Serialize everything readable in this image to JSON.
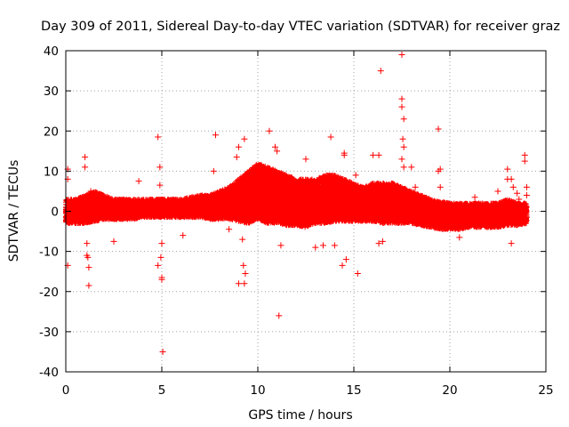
{
  "chart_data": {
    "type": "scatter",
    "title": "Day 309 of 2011, Sidereal Day-to-day VTEC variation (SDTVAR) for receiver graz",
    "xlabel": "GPS time / hours",
    "ylabel": "SDTVAR / TECUs",
    "xlim": [
      0,
      25
    ],
    "ylim": [
      -40,
      40
    ],
    "xticks": [
      0,
      5,
      10,
      15,
      20,
      25
    ],
    "yticks": [
      -40,
      -30,
      -20,
      -10,
      0,
      10,
      20,
      30,
      40
    ],
    "grid": true,
    "marker": "+",
    "color": "#ff0000",
    "band": {
      "description": "dense continuous data band approx. lower/upper envelope (TECU) vs GPS time (hours)",
      "x": [
        0.0,
        0.5,
        1.0,
        1.5,
        2.0,
        2.5,
        3.0,
        3.5,
        4.0,
        4.5,
        5.0,
        5.5,
        6.0,
        6.5,
        7.0,
        7.5,
        8.0,
        8.5,
        9.0,
        9.5,
        10.0,
        10.5,
        11.0,
        11.5,
        12.0,
        12.5,
        13.0,
        13.5,
        14.0,
        14.5,
        15.0,
        15.5,
        16.0,
        16.5,
        17.0,
        17.5,
        18.0,
        18.5,
        19.0,
        19.5,
        20.0,
        20.5,
        21.0,
        21.5,
        22.0,
        22.5,
        23.0,
        23.5,
        24.0
      ],
      "lower": [
        -3,
        -3,
        -3,
        -2.5,
        -2,
        -2,
        -2,
        -2,
        -1.5,
        -1.5,
        -1.5,
        -1.5,
        -1.5,
        -1.5,
        -1.5,
        -2,
        -2,
        -2,
        -2.5,
        -3,
        -2,
        -3,
        -3,
        -3.5,
        -3.5,
        -4,
        -3,
        -3,
        -2.5,
        -2.5,
        -2.5,
        -2.5,
        -2.5,
        -3,
        -3,
        -3,
        -3,
        -3.5,
        -4,
        -4.5,
        -4.5,
        -4.5,
        -4,
        -4,
        -4,
        -4,
        -3.5,
        -3.5,
        -3
      ],
      "upper": [
        3,
        3,
        4,
        5,
        4,
        3,
        3,
        3,
        3,
        3,
        3,
        3,
        3,
        3.5,
        4,
        4,
        5,
        6,
        8,
        10,
        12,
        11,
        10,
        9,
        8,
        8,
        8,
        9,
        9,
        8,
        7,
        6,
        7,
        7,
        7,
        6,
        5,
        4,
        3,
        2.5,
        2,
        2,
        2,
        2,
        2,
        2,
        3,
        2,
        2
      ]
    },
    "outliers": [
      {
        "x": 0.1,
        "y": 10.5
      },
      {
        "x": 0.1,
        "y": 8
      },
      {
        "x": 0.1,
        "y": -13.5
      },
      {
        "x": 1.0,
        "y": 13.5
      },
      {
        "x": 1.0,
        "y": 11
      },
      {
        "x": 1.1,
        "y": -8
      },
      {
        "x": 1.1,
        "y": -11
      },
      {
        "x": 1.2,
        "y": -14
      },
      {
        "x": 1.2,
        "y": -18.5
      },
      {
        "x": 1.15,
        "y": -11.5
      },
      {
        "x": 1.3,
        "y": 5
      },
      {
        "x": 2.5,
        "y": -7.5
      },
      {
        "x": 3.8,
        "y": 7.5
      },
      {
        "x": 4.8,
        "y": 18.5
      },
      {
        "x": 4.9,
        "y": 11
      },
      {
        "x": 4.9,
        "y": 6.5
      },
      {
        "x": 5.0,
        "y": -8
      },
      {
        "x": 4.95,
        "y": -11.5
      },
      {
        "x": 4.8,
        "y": -13.5
      },
      {
        "x": 5.0,
        "y": -16.5
      },
      {
        "x": 5.0,
        "y": -17
      },
      {
        "x": 5.05,
        "y": -35
      },
      {
        "x": 6.1,
        "y": -6
      },
      {
        "x": 7.8,
        "y": 19
      },
      {
        "x": 7.7,
        "y": 10
      },
      {
        "x": 8.5,
        "y": -4.5
      },
      {
        "x": 8.9,
        "y": 13.5
      },
      {
        "x": 9.0,
        "y": 16
      },
      {
        "x": 9.3,
        "y": 18
      },
      {
        "x": 9.0,
        "y": -18
      },
      {
        "x": 9.25,
        "y": -13.5
      },
      {
        "x": 9.35,
        "y": -15.5
      },
      {
        "x": 9.3,
        "y": -18
      },
      {
        "x": 9.2,
        "y": -7
      },
      {
        "x": 10.6,
        "y": 20
      },
      {
        "x": 10.9,
        "y": 16
      },
      {
        "x": 11.0,
        "y": 15
      },
      {
        "x": 11.2,
        "y": -8.5
      },
      {
        "x": 11.1,
        "y": -26
      },
      {
        "x": 12.5,
        "y": 13
      },
      {
        "x": 13.0,
        "y": -9
      },
      {
        "x": 13.4,
        "y": -8.5
      },
      {
        "x": 13.8,
        "y": 18.5
      },
      {
        "x": 14.0,
        "y": -8.5
      },
      {
        "x": 14.5,
        "y": 14.5
      },
      {
        "x": 14.4,
        "y": -13.5
      },
      {
        "x": 14.6,
        "y": -12
      },
      {
        "x": 14.5,
        "y": 14
      },
      {
        "x": 15.2,
        "y": -15.5
      },
      {
        "x": 15.1,
        "y": 9
      },
      {
        "x": 16.0,
        "y": 14
      },
      {
        "x": 16.3,
        "y": 14
      },
      {
        "x": 16.4,
        "y": 35
      },
      {
        "x": 16.5,
        "y": -7.5
      },
      {
        "x": 16.3,
        "y": -8
      },
      {
        "x": 17.5,
        "y": 39
      },
      {
        "x": 17.5,
        "y": 28
      },
      {
        "x": 17.5,
        "y": 26
      },
      {
        "x": 17.6,
        "y": 23
      },
      {
        "x": 17.55,
        "y": 18
      },
      {
        "x": 17.6,
        "y": 16
      },
      {
        "x": 17.5,
        "y": 13
      },
      {
        "x": 17.6,
        "y": 11
      },
      {
        "x": 18.0,
        "y": 11
      },
      {
        "x": 18.2,
        "y": 6
      },
      {
        "x": 19.4,
        "y": 20.5
      },
      {
        "x": 19.5,
        "y": 10.5
      },
      {
        "x": 19.4,
        "y": 10
      },
      {
        "x": 19.5,
        "y": 6
      },
      {
        "x": 20.5,
        "y": -6.5
      },
      {
        "x": 21.3,
        "y": 3.5
      },
      {
        "x": 22.5,
        "y": 5
      },
      {
        "x": 23.0,
        "y": 10.5
      },
      {
        "x": 23.0,
        "y": 8
      },
      {
        "x": 23.2,
        "y": 8
      },
      {
        "x": 23.2,
        "y": -8
      },
      {
        "x": 23.3,
        "y": 6
      },
      {
        "x": 23.5,
        "y": 4.5
      },
      {
        "x": 23.6,
        "y": 3
      },
      {
        "x": 23.9,
        "y": 14
      },
      {
        "x": 23.9,
        "y": 12.5
      },
      {
        "x": 24.0,
        "y": 6
      },
      {
        "x": 24.0,
        "y": 4
      },
      {
        "x": 24.0,
        "y": -1.5
      }
    ]
  }
}
